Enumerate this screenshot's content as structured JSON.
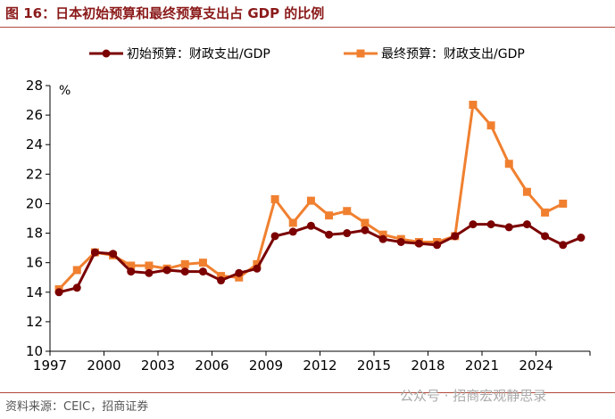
{
  "title": "图 16：日本初始预算和最终预算支出占 GDP 的比例",
  "source": "资料来源：CEIC，招商证券",
  "watermark": "公众号 · 招商宏观静思录",
  "chart_data": {
    "type": "line",
    "unit": "%",
    "ylim": [
      10,
      28
    ],
    "yticks": [
      10,
      12,
      14,
      16,
      18,
      20,
      22,
      24,
      26,
      28
    ],
    "xtick_labels": [
      "1997",
      "2000",
      "2003",
      "2006",
      "2009",
      "2012",
      "2015",
      "2018",
      "2021",
      "2024"
    ],
    "x": [
      1997,
      1998,
      1999,
      2000,
      2001,
      2002,
      2003,
      2004,
      2005,
      2006,
      2007,
      2008,
      2009,
      2010,
      2011,
      2012,
      2013,
      2014,
      2015,
      2016,
      2017,
      2018,
      2019,
      2020,
      2021,
      2022,
      2023,
      2024,
      2025,
      2026
    ],
    "legend_position": "top",
    "grid": false,
    "series": [
      {
        "name": "初始预算：财政支出/GDP",
        "color": "#7b0000",
        "marker": "circle",
        "values": [
          14.0,
          14.3,
          16.7,
          16.6,
          15.4,
          15.3,
          15.5,
          15.4,
          15.4,
          14.8,
          15.3,
          15.6,
          17.8,
          18.1,
          18.5,
          17.9,
          18.0,
          18.2,
          17.6,
          17.4,
          17.3,
          17.2,
          17.8,
          18.6,
          18.6,
          18.4,
          18.6,
          17.8,
          17.2,
          17.7
        ]
      },
      {
        "name": "最终预算：财政支出/GDP",
        "color": "#f08030",
        "marker": "square",
        "values": [
          14.2,
          15.5,
          16.7,
          16.5,
          15.8,
          15.8,
          15.6,
          15.9,
          16.0,
          15.1,
          15.0,
          15.9,
          20.3,
          18.7,
          20.2,
          19.2,
          19.5,
          18.7,
          17.9,
          17.6,
          17.4,
          17.4,
          17.8,
          26.7,
          25.3,
          22.7,
          20.8,
          19.4,
          20.0,
          null
        ]
      }
    ]
  }
}
